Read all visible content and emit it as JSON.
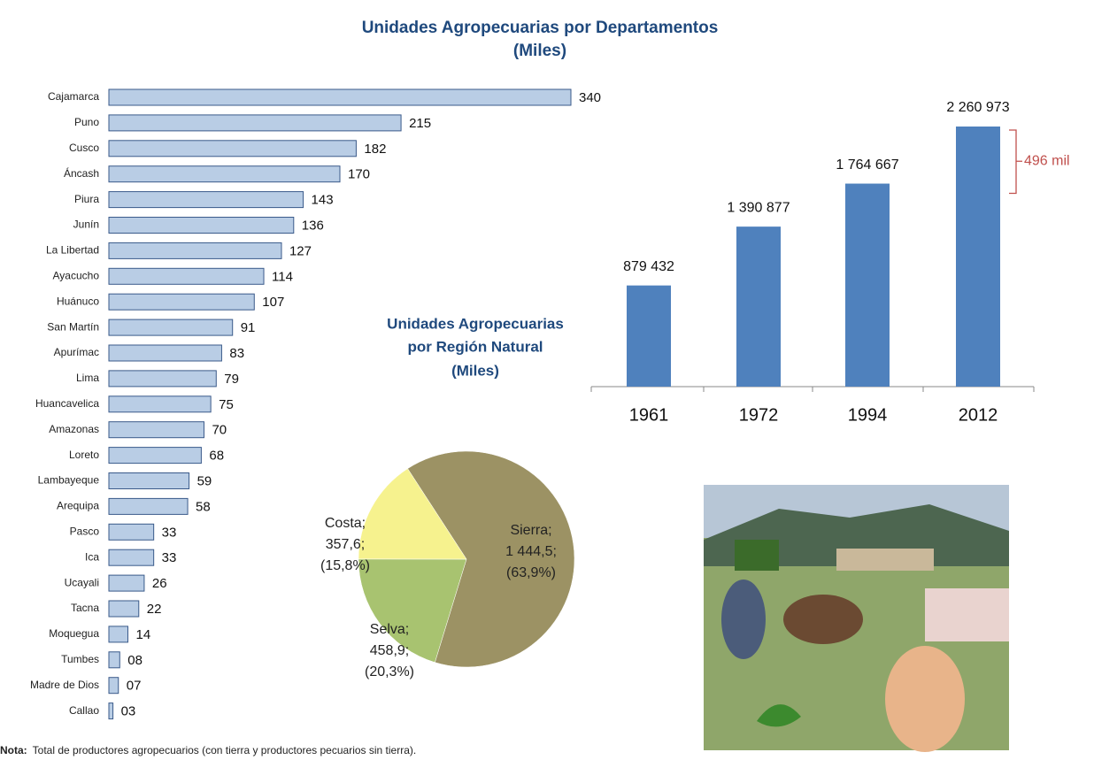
{
  "chart_data": [
    {
      "type": "bar",
      "orientation": "horizontal",
      "title": "Unidades Agropecuarias por Departamentos",
      "subtitle": "(Miles)",
      "categories": [
        "Cajamarca",
        "Puno",
        "Cusco",
        "Áncash",
        "Piura",
        "Junín",
        "La Libertad",
        "Ayacucho",
        "Huánuco",
        "San Martín",
        "Apurímac",
        "Lima",
        "Huancavelica",
        "Amazonas",
        "Loreto",
        "Lambayeque",
        "Arequipa",
        "Pasco",
        "Ica",
        "Ucayali",
        "Tacna",
        "Moquegua",
        "Tumbes",
        "Madre de Dios",
        "Callao"
      ],
      "values": [
        340,
        215,
        182,
        170,
        143,
        136,
        127,
        114,
        107,
        91,
        83,
        79,
        75,
        70,
        68,
        59,
        58,
        33,
        33,
        26,
        22,
        14,
        8,
        7,
        3
      ],
      "value_labels": [
        "340",
        "215",
        "182",
        "170",
        "143",
        "136",
        "127",
        "114",
        "107",
        "91",
        "83",
        "79",
        "75",
        "70",
        "68",
        "59",
        "58",
        "33",
        "33",
        "26",
        "22",
        "14",
        "08",
        "07",
        "03"
      ],
      "color": "#b9cde5",
      "edge_color": "#3a5a8a"
    },
    {
      "type": "bar",
      "orientation": "vertical",
      "categories": [
        "1961",
        "1972",
        "1994",
        "2012"
      ],
      "values": [
        879432,
        1390877,
        1764667,
        2260973
      ],
      "value_labels": [
        "879 432",
        "1 390 877",
        "1 764 667",
        "2 260 973"
      ],
      "color": "#4f81bd",
      "annotation": {
        "text": "496 mil",
        "color": "#c0504d"
      }
    },
    {
      "type": "pie",
      "title": "Unidades Agropecuarias por Región Natural",
      "subtitle": "(Miles)",
      "categories": [
        "Sierra;",
        "Selva;",
        "Costa;"
      ],
      "values": [
        1444.5,
        458.9,
        357.6
      ],
      "value_labels": [
        "1 444,5;",
        "458,9;",
        "357,6;"
      ],
      "percents": [
        63.9,
        20.3,
        15.8
      ],
      "percent_labels": [
        "(63,9%)",
        "(20,3%)",
        "(15,8%)"
      ],
      "colors": [
        "#9c9264",
        "#a8c370",
        "#f6f28e"
      ]
    }
  ],
  "note": {
    "label": "Nota:",
    "text": "Total de productores agropecuarios (con tierra y productores pecuarios sin tierra)."
  }
}
